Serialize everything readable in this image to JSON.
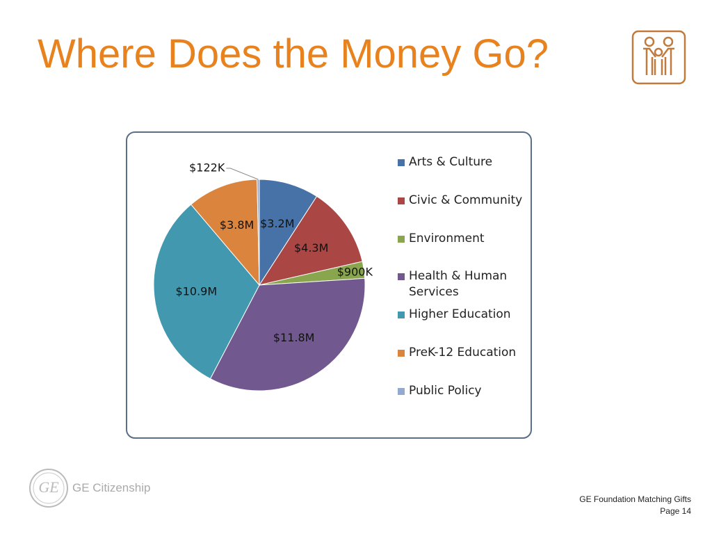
{
  "chart_data": {
    "type": "pie",
    "title": "Where Does the Money Go?",
    "categories": [
      "Arts & Culture",
      "Civic & Community",
      "Environment",
      "Health & Human Services",
      "Higher Education",
      "PreK-12 Education",
      "Public Policy"
    ],
    "values": [
      3200000,
      4300000,
      900000,
      11800000,
      10900000,
      3800000,
      122000
    ],
    "value_labels": [
      "$3.2M",
      "$4.3M",
      "$900K",
      "$11.8M",
      "$10.9M",
      "$3.8M",
      "$122K"
    ],
    "colors": [
      "#4672a8",
      "#aa4643",
      "#89a54e",
      "#71588f",
      "#4198af",
      "#db843d",
      "#93a9cf"
    ],
    "legend": "right"
  },
  "footer": {
    "brand": "GE Citizenship",
    "program": "GE Foundation Matching Gifts",
    "page": "Page 14"
  }
}
